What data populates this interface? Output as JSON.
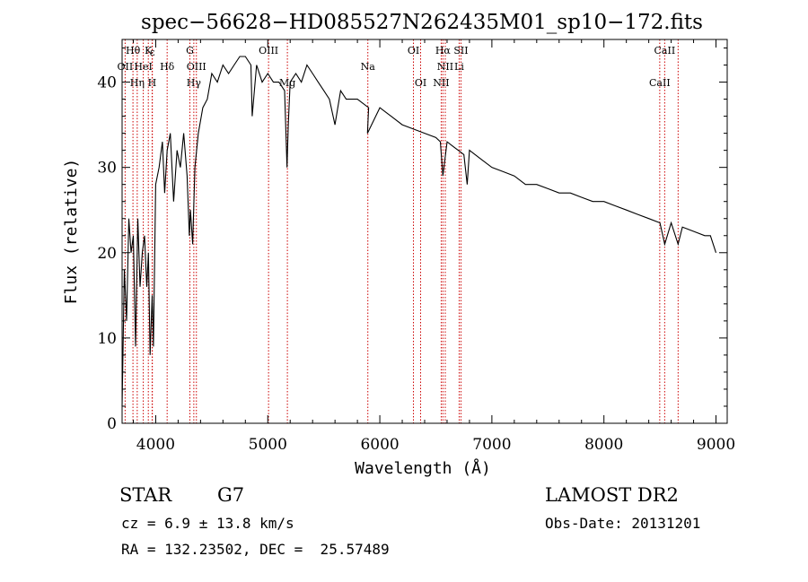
{
  "chart_data": {
    "type": "line",
    "title": "spec−56628−HD085527N262435M01_sp10−172.fits",
    "xlabel": "Wavelength (Å)",
    "ylabel": "Flux (relative)",
    "xlim": [
      3700,
      9100
    ],
    "ylim": [
      0,
      45
    ],
    "xticks": [
      4000,
      5000,
      6000,
      7000,
      8000,
      9000
    ],
    "yticks": [
      0,
      10,
      20,
      30,
      40
    ],
    "grid": false,
    "line_color": "#000000",
    "marker_color": "#cc0000",
    "series": [
      {
        "x": [
          3700,
          3720,
          3740,
          3760,
          3780,
          3800,
          3820,
          3840,
          3860,
          3880,
          3900,
          3920,
          3935,
          3950,
          3968,
          3980,
          4000,
          4030,
          4060,
          4080,
          4102,
          4130,
          4160,
          4190,
          4220,
          4250,
          4280,
          4300,
          4310,
          4330,
          4350,
          4380,
          4420,
          4460,
          4500,
          4550,
          4600,
          4650,
          4700,
          4750,
          4800,
          4850,
          4861,
          4900,
          4950,
          5000,
          5050,
          5100,
          5150,
          5172,
          5183,
          5200,
          5250,
          5300,
          5350,
          5400,
          5450,
          5500,
          5550,
          5600,
          5650,
          5700,
          5800,
          5900,
          5890,
          6000,
          6100,
          6200,
          6300,
          6400,
          6500,
          6540,
          6563,
          6600,
          6650,
          6700,
          6750,
          6780,
          6800,
          6900,
          7000,
          7100,
          7200,
          7300,
          7400,
          7500,
          7600,
          7700,
          7800,
          7900,
          8000,
          8100,
          8200,
          8300,
          8400,
          8500,
          8542,
          8600,
          8662,
          8700,
          8800,
          8900,
          8950,
          9000
        ],
        "y": [
          2,
          18,
          12,
          24,
          20,
          22,
          9,
          24,
          16,
          20,
          22,
          16,
          20,
          8,
          15,
          9,
          28,
          30,
          33,
          27,
          32,
          34,
          26,
          32,
          30,
          34,
          29,
          22,
          25,
          21,
          30,
          34,
          37,
          38,
          41,
          40,
          42,
          41,
          42,
          43,
          43,
          42,
          36,
          42,
          40,
          41,
          40,
          40,
          39,
          30,
          35,
          40,
          41,
          40,
          42,
          41,
          40,
          39,
          38,
          35,
          39,
          38,
          38,
          37,
          34,
          37,
          36,
          35,
          34.5,
          34,
          33.5,
          33,
          29,
          33,
          32.5,
          32,
          31.5,
          28,
          32,
          31,
          30,
          29.5,
          29,
          28,
          28,
          27.5,
          27,
          27,
          26.5,
          26,
          26,
          25.5,
          25,
          24.5,
          24,
          23.5,
          21,
          23.5,
          21,
          23,
          22.5,
          22,
          22,
          20
        ]
      }
    ],
    "line_markers": [
      {
        "label": "Hθ",
        "wl": 3797,
        "row": 1
      },
      {
        "label": "K",
        "wl": 3934,
        "row": 1
      },
      {
        "label": "G",
        "wl": 4305,
        "row": 1
      },
      {
        "label": "OIII",
        "wl": 5007,
        "row": 1
      },
      {
        "label": "OI",
        "wl": 6300,
        "row": 1
      },
      {
        "label": "Hα",
        "wl": 6563,
        "row": 1
      },
      {
        "label": "SII",
        "wl": 6724,
        "row": 1
      },
      {
        "label": "CaII",
        "wl": 8542,
        "row": 1
      },
      {
        "label": "OII",
        "wl": 3727,
        "row": 2
      },
      {
        "label": "HeI",
        "wl": 3889,
        "row": 2
      },
      {
        "label": "Hδ",
        "wl": 4102,
        "row": 2
      },
      {
        "label": "OIII",
        "wl": 4363,
        "row": 2
      },
      {
        "label": "Na",
        "wl": 5893,
        "row": 2
      },
      {
        "label": "NII",
        "wl": 6584,
        "row": 2
      },
      {
        "label": "Li",
        "wl": 6708,
        "row": 2
      },
      {
        "label": "Hη",
        "wl": 3835,
        "row": 3
      },
      {
        "label": "H",
        "wl": 3968,
        "row": 3
      },
      {
        "label": "Hγ",
        "wl": 4340,
        "row": 3
      },
      {
        "label": "Mg",
        "wl": 5175,
        "row": 3
      },
      {
        "label": "OI",
        "wl": 6364,
        "row": 3
      },
      {
        "label": "NII",
        "wl": 6548,
        "row": 3
      },
      {
        "label": "CaII",
        "wl": 8498,
        "row": 3
      },
      {
        "label": "ε",
        "wl": 3970,
        "row": 0
      },
      {
        "label": "",
        "wl": 8662,
        "row": 0
      }
    ]
  },
  "info": {
    "object_class": "STAR",
    "subclass": "G7",
    "survey": "LAMOST DR2",
    "cz": "cz = 6.9 ± 13.8 km/s",
    "obs_date": "Obs-Date: 20131201",
    "coords": "RA = 132.23502, DEC =  25.57489"
  }
}
